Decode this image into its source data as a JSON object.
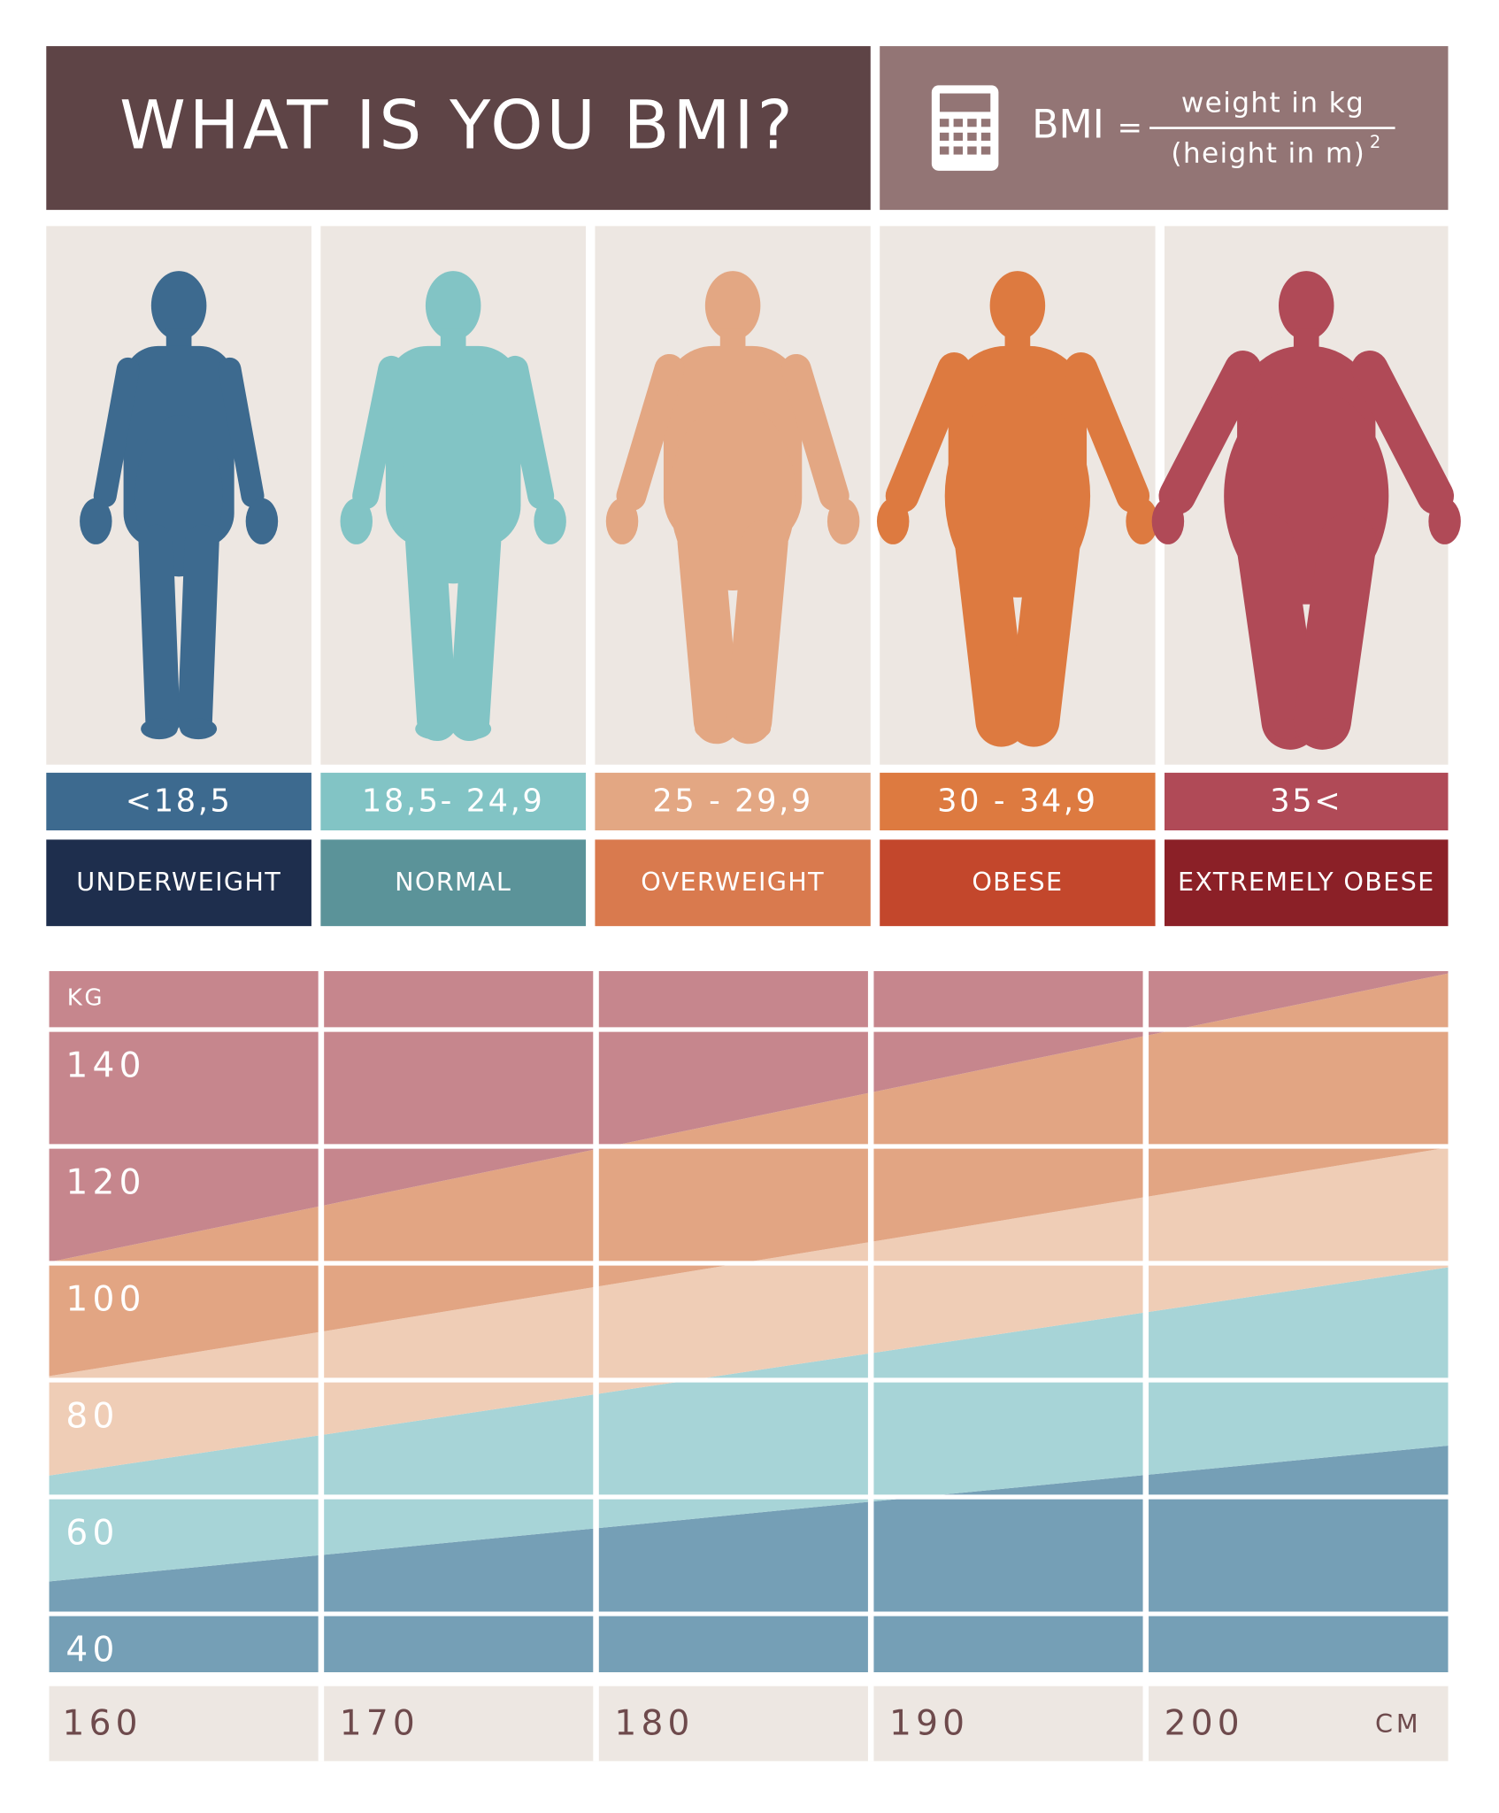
{
  "header": {
    "title": "WHAT IS YOU BMI?",
    "formula": {
      "lhs": "BMI",
      "equals": "=",
      "numerator": "weight in kg",
      "denominator": "(height in m)",
      "exponent": "2"
    }
  },
  "categories": [
    {
      "range": "<18,5",
      "label": "UNDERWEIGHT",
      "color": "#3d6a8f",
      "label_color": "#1e2e4d"
    },
    {
      "range": "18,5- 24,9",
      "label": "NORMAL",
      "color": "#82c4c5",
      "label_color": "#5b9399"
    },
    {
      "range": "25 - 29,9",
      "label": "OVERWEIGHT",
      "color": "#e3a783",
      "label_color": "#d97a4e"
    },
    {
      "range": "30 - 34,9",
      "label": "OBESE",
      "color": "#dd7a40",
      "label_color": "#c3472c"
    },
    {
      "range": "35<",
      "label": "EXTREMELY OBESE",
      "color": "#b04a57",
      "label_color": "#8b2027"
    }
  ],
  "chart_data": {
    "type": "area",
    "y_unit": "KG",
    "x_unit": "CM",
    "x": [
      160,
      211
    ],
    "xlim": [
      160,
      211
    ],
    "ylim": [
      30,
      150
    ],
    "xticks": [
      160,
      170,
      180,
      190,
      200
    ],
    "yticks": [
      40,
      60,
      80,
      100,
      120,
      140
    ],
    "grid": true,
    "band_colors": [
      "#759fb6",
      "#a7d4d7",
      "#efcdb6",
      "#e2a583",
      "#c6868d"
    ],
    "boundaries": [
      {
        "values": [
          45.5,
          68.8
        ]
      },
      {
        "values": [
          63.6,
          99.3
        ]
      },
      {
        "values": [
          80.6,
          119.8
        ]
      },
      {
        "values": [
          100.1,
          149.6
        ]
      }
    ]
  }
}
